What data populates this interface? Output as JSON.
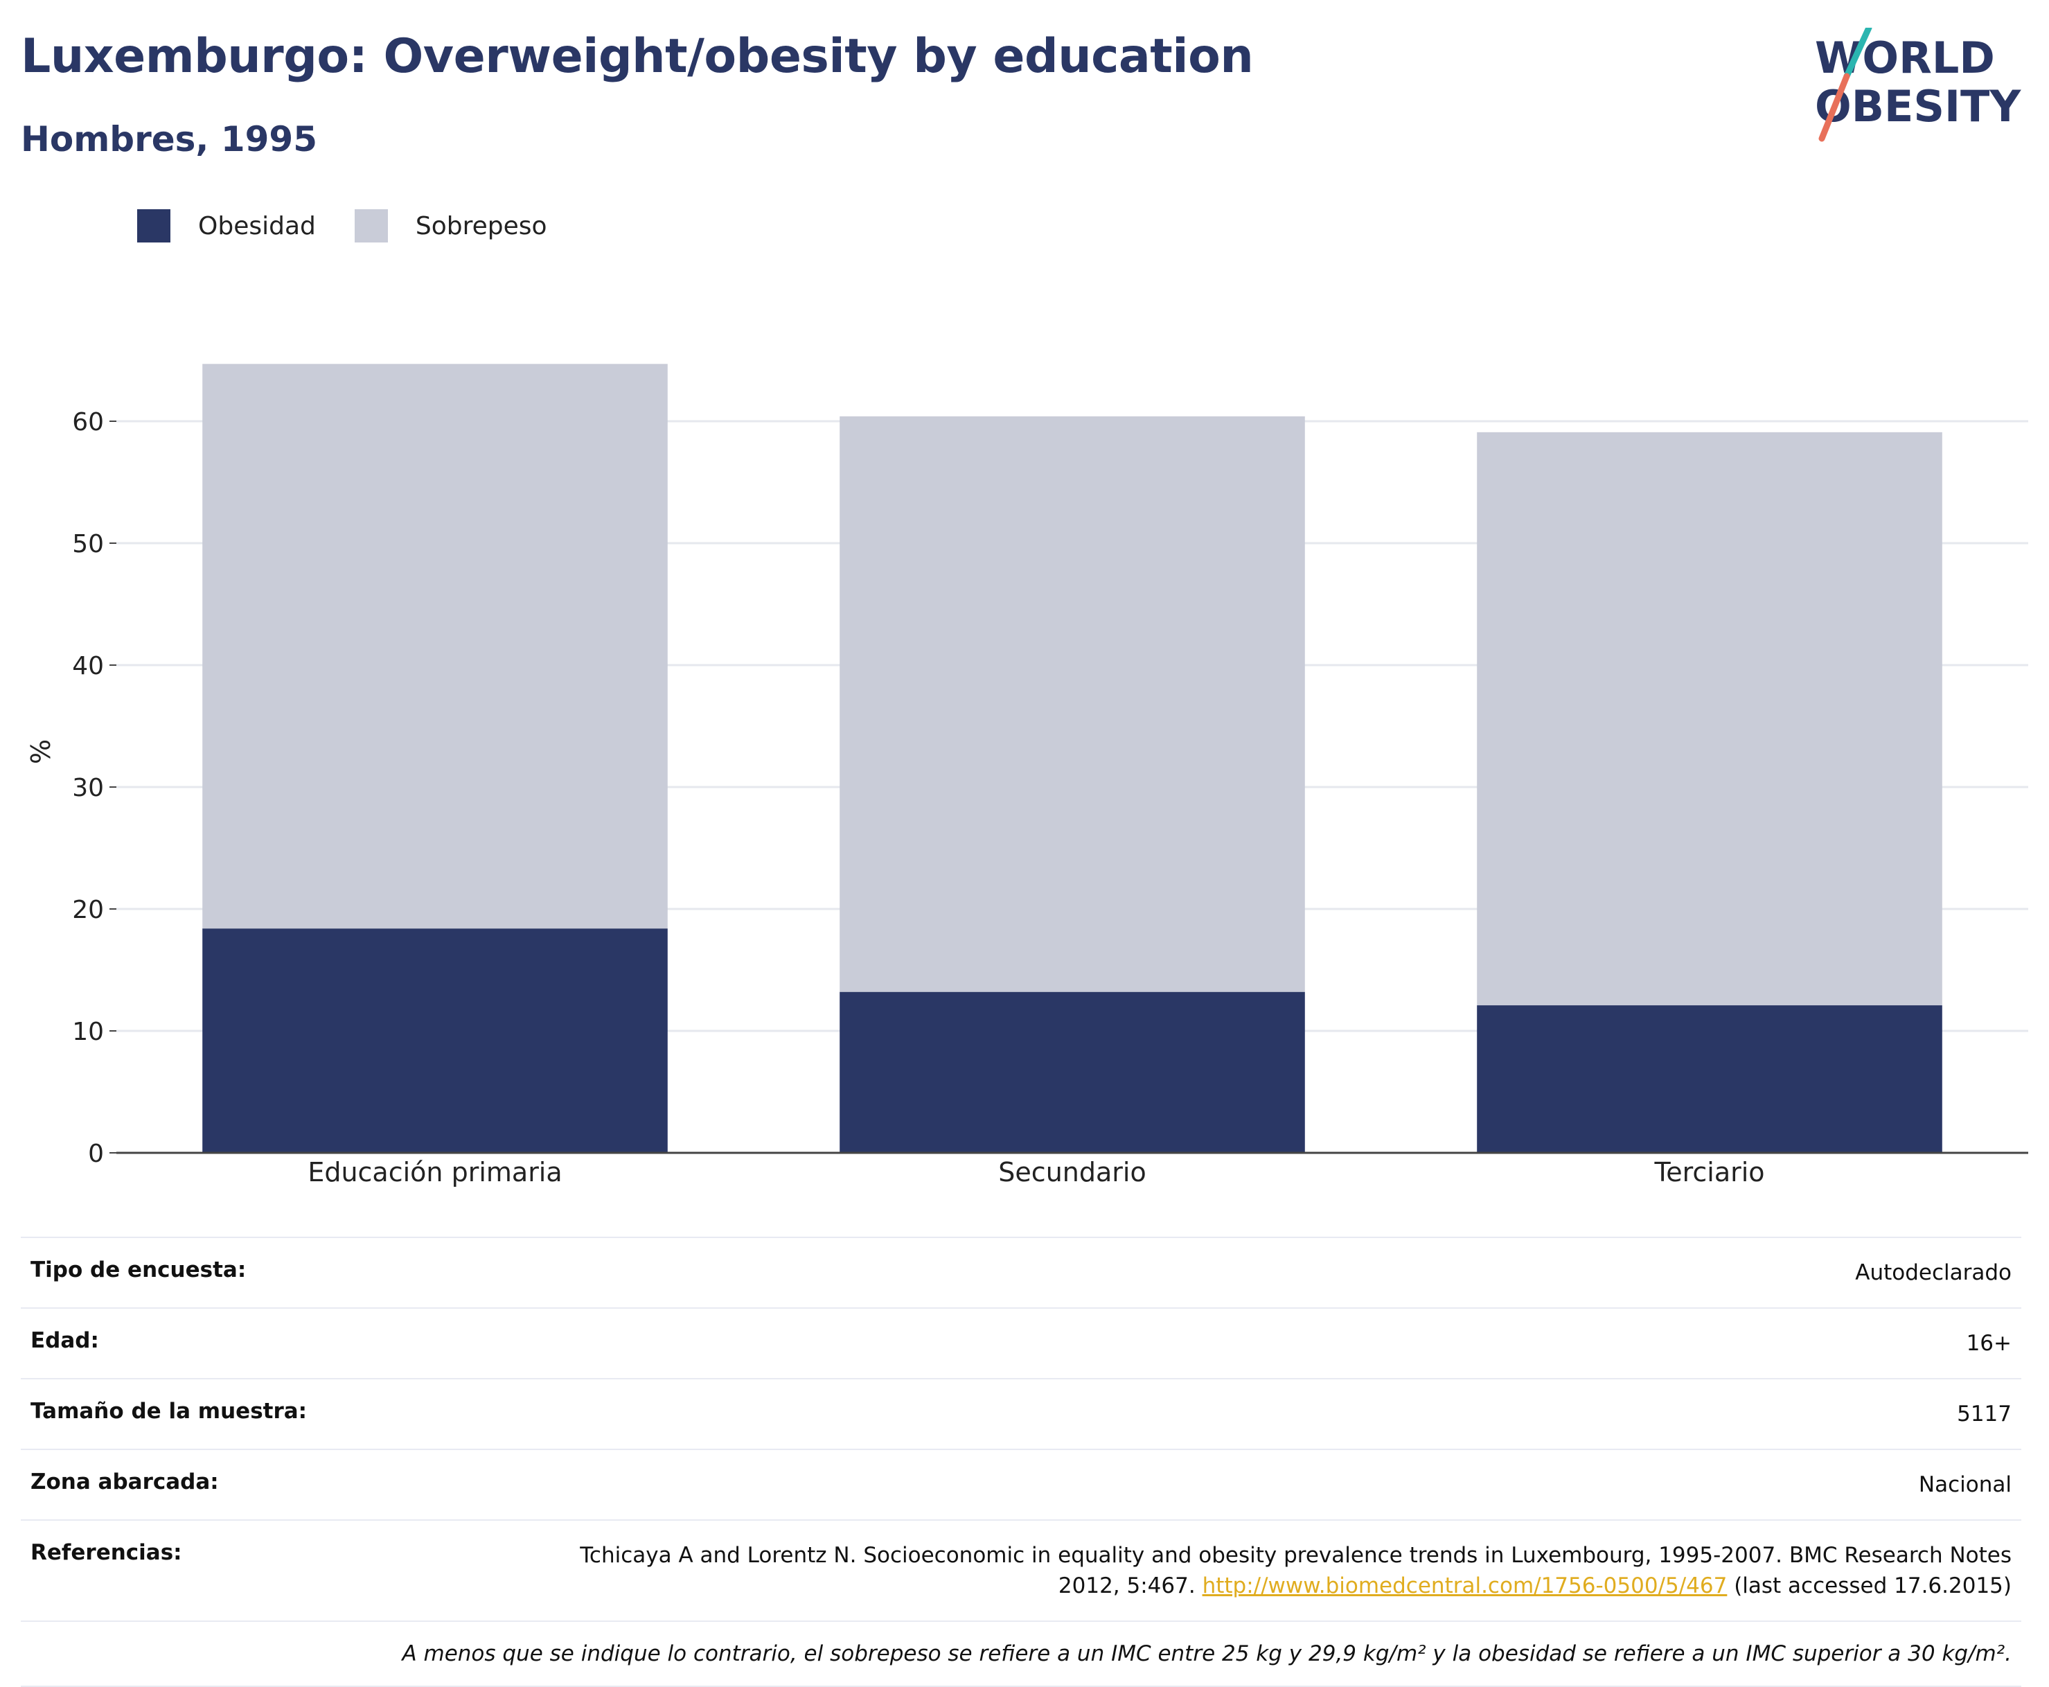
{
  "header": {
    "title": "Luxemburgo: Overweight/obesity by education",
    "subtitle": "Hombres, 1995"
  },
  "logo": {
    "line1": "WORLD",
    "line2": "OBESITY"
  },
  "colors": {
    "obesity": "#2a3765",
    "overweight": "#c9ccd8",
    "brand_teal": "#2bb5b0",
    "brand_coral": "#e8705a",
    "link": "#e0ac1f"
  },
  "chart_data": {
    "type": "bar",
    "stacked": true,
    "categories": [
      "Educación primaria",
      "Secundario",
      "Terciario"
    ],
    "series": [
      {
        "name": "Obesidad",
        "values": [
          18.4,
          13.2,
          12.1
        ]
      },
      {
        "name": "Sobrepeso",
        "values": [
          46.3,
          47.2,
          47.0
        ]
      }
    ],
    "ylabel": "%",
    "ylim": [
      0,
      65
    ],
    "yticks": [
      0,
      10,
      20,
      30,
      40,
      50,
      60
    ],
    "grid": true,
    "legend": "top-left"
  },
  "info": {
    "rows": [
      {
        "label": "Tipo de encuesta:",
        "value": "Autodeclarado"
      },
      {
        "label": "Edad:",
        "value": "16+"
      },
      {
        "label": "Tamaño de la muestra:",
        "value": "5117"
      },
      {
        "label": "Zona abarcada:",
        "value": "Nacional"
      }
    ],
    "references": {
      "label": "Referencias:",
      "text_before": "Tchicaya A and Lorentz N. Socioeconomic in equality and obesity prevalence trends in Luxembourg, 1995-2007. BMC Research Notes 2012, 5:467. ",
      "link": "http://www.biomedcentral.com/1756-0500/5/467",
      "text_after": " (last accessed 17.6.2015)"
    },
    "note": "A menos que se indique lo contrario, el sobrepeso se refiere a un IMC entre 25 kg y 29,9 kg/m² y la obesidad se refiere a un IMC superior a 30 kg/m²."
  }
}
